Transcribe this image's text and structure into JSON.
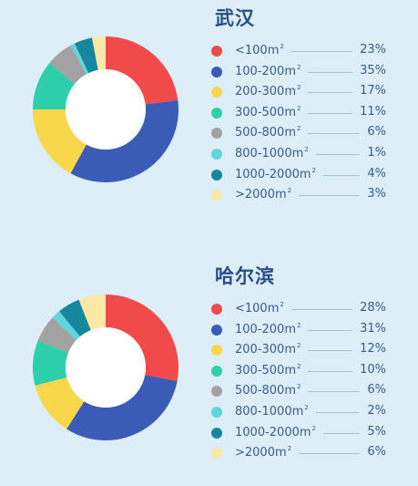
{
  "chart_data": [
    {
      "type": "pie",
      "title": "武汉",
      "categories": [
        "<100m",
        "100-200m",
        "200-300m",
        "300-500m",
        "500-800m",
        "800-1000m",
        "1000-2000m",
        ">2000m"
      ],
      "unit_sup": "2",
      "values": [
        23,
        35,
        17,
        11,
        6,
        1,
        4,
        3
      ],
      "value_labels": [
        "23%",
        "35%",
        "17%",
        "11%",
        "6%",
        "1%",
        "4%",
        "3%"
      ],
      "colors": [
        "#f14a4a",
        "#3a5bb6",
        "#f8d74a",
        "#2ed0ac",
        "#a2a2a2",
        "#5fd6db",
        "#16879d",
        "#fde8a5"
      ],
      "legend": "right",
      "grid": false
    },
    {
      "type": "pie",
      "title": "哈尔滨",
      "categories": [
        "<100m",
        "100-200m",
        "200-300m",
        "300-500m",
        "500-800m",
        "800-1000m",
        "1000-2000m",
        ">2000m"
      ],
      "unit_sup": "2",
      "values": [
        28,
        31,
        12,
        10,
        6,
        2,
        5,
        6
      ],
      "value_labels": [
        "28%",
        "31%",
        "12%",
        "10%",
        "6%",
        "2%",
        "5%",
        "6%"
      ],
      "colors": [
        "#f14a4a",
        "#3a5bb6",
        "#f8d74a",
        "#2ed0ac",
        "#a2a2a2",
        "#5fd6db",
        "#16879d",
        "#fde8a5"
      ],
      "legend": "right",
      "grid": false
    }
  ]
}
